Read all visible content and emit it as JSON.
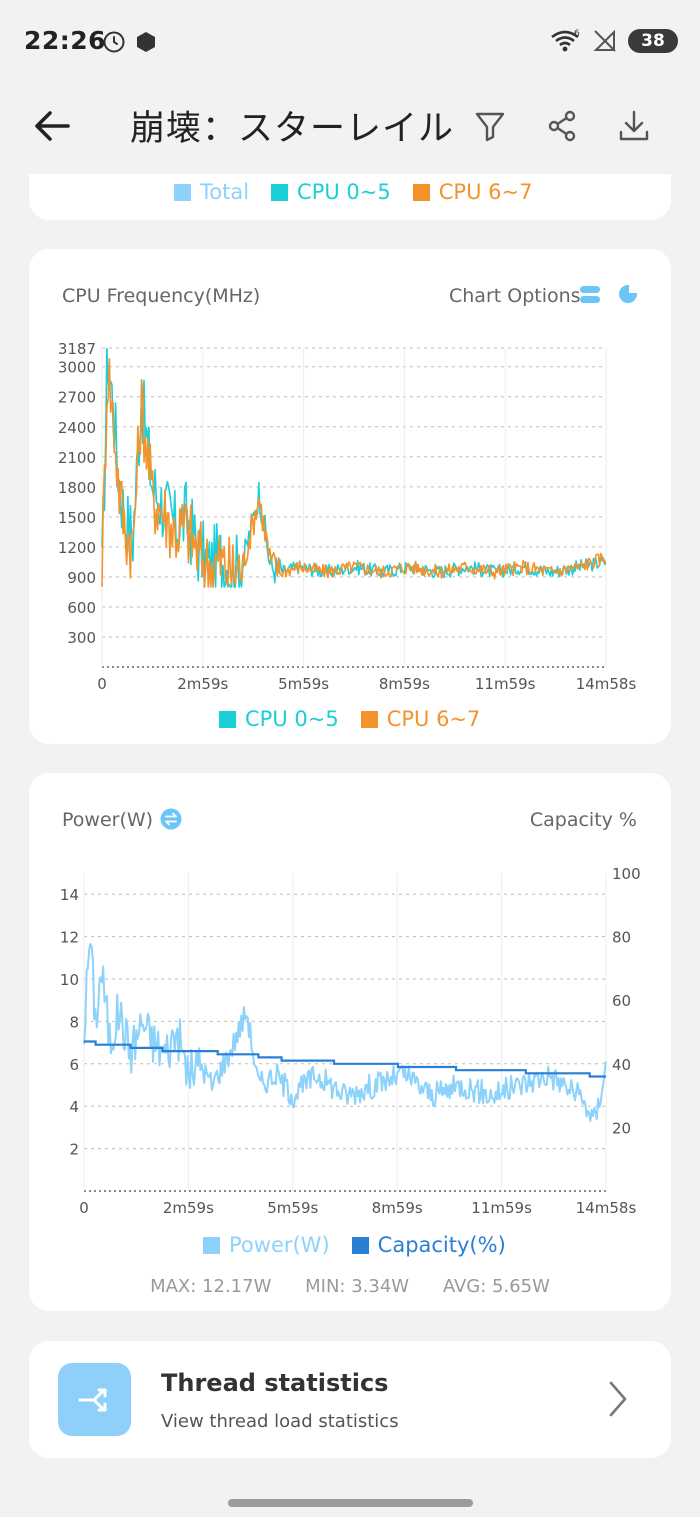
{
  "status": {
    "time": "22:26",
    "battery": "38"
  },
  "app_bar": {
    "title": "崩壊：スターレイル"
  },
  "top_legend": {
    "total": "Total",
    "cpu_0_5": "CPU 0~5",
    "cpu_6_7": "CPU 6~7"
  },
  "colors": {
    "total": "#8dd2fb",
    "cpu_0_5": "#1bcfd6",
    "cpu_6_7": "#f4922b",
    "power": "#8dd2fb",
    "capacity": "#2a7fd4",
    "accent": "#6bc6f7"
  },
  "cpu_chart": {
    "title": "CPU Frequency(MHz)",
    "options_label": "Chart Options",
    "legend": [
      "CPU 0~5",
      "CPU 6~7"
    ],
    "chart_data": {
      "type": "line",
      "title": "CPU Frequency(MHz)",
      "ylim": [
        0,
        3187
      ],
      "yticks": [
        "3187",
        "3000",
        "2700",
        "2400",
        "2100",
        "1800",
        "1500",
        "1200",
        "900",
        "600",
        "300"
      ],
      "xticks": [
        "0",
        "2m59s",
        "5m59s",
        "8m59s",
        "11m59s",
        "14m58s"
      ],
      "x_range_seconds": [
        0,
        898
      ],
      "series": [
        {
          "name": "CPU 0~5",
          "color": "#1bcfd6",
          "t": [
            0,
            10,
            20,
            30,
            40,
            55,
            70,
            90,
            110,
            130,
            150,
            170,
            190,
            210,
            230,
            250,
            280,
            300,
            320,
            350,
            400,
            450,
            500,
            550,
            600,
            650,
            700,
            750,
            800,
            850,
            898
          ],
          "values": [
            900,
            3150,
            2600,
            1900,
            1500,
            1300,
            2700,
            1800,
            1600,
            1400,
            1500,
            1200,
            1000,
            1100,
            950,
            1000,
            1750,
            1000,
            950,
            1000,
            950,
            1000,
            950,
            1000,
            950,
            1000,
            950,
            1000,
            950,
            1000,
            1050
          ]
        },
        {
          "name": "CPU 6~7",
          "color": "#f4922b",
          "t": [
            0,
            10,
            20,
            30,
            40,
            55,
            70,
            90,
            110,
            130,
            150,
            170,
            190,
            210,
            230,
            250,
            280,
            300,
            320,
            350,
            400,
            450,
            500,
            550,
            600,
            650,
            700,
            750,
            800,
            850,
            898
          ],
          "values": [
            900,
            3050,
            2500,
            1800,
            1400,
            1200,
            2650,
            1700,
            1550,
            1350,
            1400,
            1150,
            1000,
            1050,
            950,
            1000,
            1700,
            1050,
            950,
            1000,
            950,
            1000,
            950,
            1000,
            950,
            1000,
            950,
            1000,
            950,
            1000,
            1100
          ]
        }
      ]
    }
  },
  "power_chart": {
    "title": "Power(W)",
    "right_label": "Capacity %",
    "legend": [
      "Power(W)",
      "Capacity(%)"
    ],
    "stats": {
      "max": "MAX: 12.17W",
      "min": "MIN: 3.34W",
      "avg": "AVG: 5.65W"
    },
    "chart_data": {
      "type": "line",
      "title": "Power(W)",
      "ylim_left": [
        0,
        15
      ],
      "ylim_right": [
        0,
        100
      ],
      "yticks_left": [
        "14",
        "12",
        "10",
        "8",
        "6",
        "4",
        "2"
      ],
      "yticks_right": [
        "100",
        "80",
        "60",
        "40",
        "20"
      ],
      "xticks": [
        "0",
        "2m59s",
        "5m59s",
        "8m59s",
        "11m59s",
        "14m58s"
      ],
      "x_range_seconds": [
        0,
        898
      ],
      "series": [
        {
          "name": "Power(W)",
          "color": "#8dd2fb",
          "axis": "left",
          "t": [
            0,
            10,
            20,
            30,
            45,
            60,
            80,
            100,
            120,
            140,
            160,
            180,
            200,
            220,
            250,
            280,
            300,
            330,
            360,
            400,
            450,
            500,
            550,
            600,
            650,
            700,
            750,
            800,
            850,
            880,
            898
          ],
          "values": [
            7.5,
            12.17,
            8,
            10.5,
            7,
            8.5,
            6.5,
            8,
            7,
            6.5,
            7.5,
            5.5,
            6,
            5,
            6.5,
            8.5,
            5,
            5.5,
            4.5,
            5.5,
            4.5,
            5,
            5.5,
            4.5,
            5,
            4.5,
            5,
            5.5,
            4.5,
            3.34,
            6
          ]
        },
        {
          "name": "Capacity(%)",
          "color": "#2a7fd4",
          "axis": "right",
          "t": [
            0,
            20,
            80,
            135,
            230,
            300,
            340,
            430,
            490,
            540,
            580,
            640,
            680,
            760,
            800,
            870,
            880,
            898
          ],
          "values": [
            47,
            46,
            45,
            44,
            43,
            42,
            41,
            40,
            40,
            39,
            39,
            38,
            38,
            37,
            37,
            36,
            36,
            36
          ]
        }
      ]
    }
  },
  "thread": {
    "title": "Thread statistics",
    "subtitle": "View thread load statistics"
  }
}
